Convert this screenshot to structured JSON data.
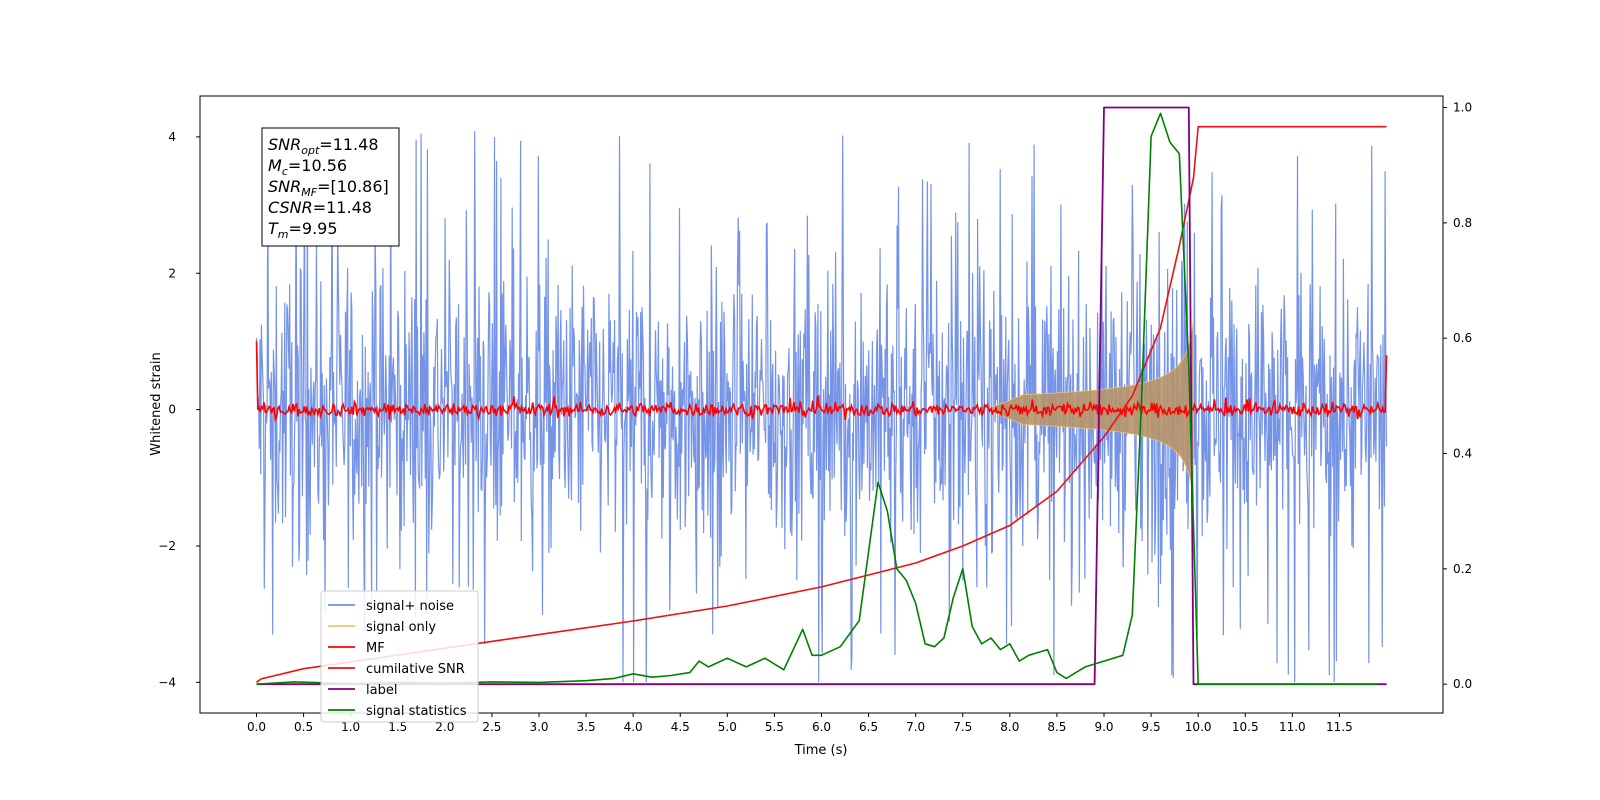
{
  "chart_data": {
    "type": "line",
    "xlabel": "Time (s)",
    "ylabel_left": "Whitened strain",
    "xlim": [
      -0.6,
      12.6
    ],
    "ylim_left": [
      -4.45,
      4.6
    ],
    "ylim_right": [
      -0.05,
      1.02
    ],
    "x_ticks": [
      0.0,
      0.5,
      1.0,
      1.5,
      2.0,
      2.5,
      3.0,
      3.5,
      4.0,
      4.5,
      5.0,
      5.5,
      6.0,
      6.5,
      7.0,
      7.5,
      8.0,
      8.5,
      9.0,
      9.5,
      10.0,
      10.5,
      11.0,
      11.5
    ],
    "x_tick_labels": [
      "0.0",
      "0.5",
      "1.0",
      "1.5",
      "2.0",
      "2.5",
      "3.0",
      "3.5",
      "4.0",
      "4.5",
      "5.0",
      "5.5",
      "6.0",
      "6.5",
      "7.0",
      "7.5",
      "8.0",
      "8.5",
      "9.0",
      "9.5",
      "10.0",
      "10.5",
      "11.0",
      "11.5"
    ],
    "y_ticks_left": [
      -4,
      -2,
      0,
      2,
      4
    ],
    "y_tick_labels_left": [
      "−4",
      "−2",
      "0",
      "2",
      "4"
    ],
    "y_ticks_right": [
      0.0,
      0.2,
      0.4,
      0.6,
      0.8,
      1.0
    ],
    "y_tick_labels_right": [
      "0.0",
      "0.2",
      "0.4",
      "0.6",
      "0.8",
      "1.0"
    ],
    "grid": false,
    "legend_position": "bottom-left",
    "colors": {
      "signal_noise": "#6f8ee6",
      "signal_only": "#f5c56b",
      "signal_only_fill": "#b8956a",
      "mf": "#ff0000",
      "cumulative_snr": "#ee1111",
      "label": "#800080",
      "signal_statistics": "#008000"
    },
    "series": [
      {
        "name": "signal+ noise",
        "axis": "left",
        "t_range": [
          0.0,
          12.0
        ],
        "amplitude_band": [
          -2.9,
          2.6
        ]
      },
      {
        "name": "signal only",
        "axis": "left",
        "t_range": [
          7.8,
          9.95
        ],
        "envelope_at_end": 0.95
      },
      {
        "name": "MF",
        "axis": "left",
        "t_range": [
          0.0,
          12.0
        ],
        "mean": 0.0,
        "band": [
          -0.15,
          0.2
        ],
        "start_value": 1.0,
        "end_value": 0.8
      },
      {
        "name": "cumilative SNR",
        "axis": "left",
        "x": [
          0.0,
          0.05,
          0.5,
          1.0,
          2.0,
          3.0,
          4.0,
          5.0,
          6.0,
          7.0,
          7.5,
          8.0,
          8.5,
          9.0,
          9.3,
          9.6,
          9.8,
          9.95,
          10.0,
          12.0
        ],
        "y": [
          -4.0,
          -3.95,
          -3.8,
          -3.7,
          -3.5,
          -3.3,
          -3.1,
          -2.88,
          -2.6,
          -2.25,
          -2.0,
          -1.7,
          -1.2,
          -0.4,
          0.2,
          1.2,
          2.4,
          3.4,
          4.15,
          4.15
        ]
      },
      {
        "name": "label",
        "axis": "right",
        "x": [
          0.0,
          8.9,
          9.0,
          9.9,
          9.95,
          12.0
        ],
        "y": [
          0.0,
          0.0,
          1.0,
          1.0,
          0.0,
          0.0
        ]
      },
      {
        "name": "signal statistics",
        "axis": "right",
        "x": [
          0.0,
          0.4,
          1.0,
          1.5,
          2.0,
          2.5,
          3.0,
          3.5,
          3.8,
          4.0,
          4.2,
          4.4,
          4.6,
          4.7,
          4.8,
          5.0,
          5.2,
          5.4,
          5.6,
          5.8,
          5.9,
          6.0,
          6.2,
          6.4,
          6.5,
          6.6,
          6.7,
          6.8,
          6.9,
          7.0,
          7.1,
          7.2,
          7.3,
          7.4,
          7.5,
          7.6,
          7.7,
          7.8,
          7.9,
          8.0,
          8.1,
          8.2,
          8.3,
          8.4,
          8.5,
          8.6,
          8.7,
          8.8,
          9.0,
          9.2,
          9.3,
          9.4,
          9.5,
          9.6,
          9.7,
          9.8,
          9.9,
          10.0,
          10.5,
          11.0,
          11.5,
          11.9
        ],
        "y": [
          0.0,
          0.004,
          0.001,
          0.003,
          0.002,
          0.004,
          0.003,
          0.006,
          0.01,
          0.018,
          0.012,
          0.015,
          0.02,
          0.04,
          0.03,
          0.045,
          0.03,
          0.045,
          0.025,
          0.095,
          0.05,
          0.05,
          0.065,
          0.11,
          0.23,
          0.35,
          0.3,
          0.2,
          0.18,
          0.14,
          0.07,
          0.065,
          0.08,
          0.15,
          0.2,
          0.1,
          0.07,
          0.08,
          0.06,
          0.07,
          0.04,
          0.05,
          0.055,
          0.06,
          0.02,
          0.01,
          0.02,
          0.03,
          0.04,
          0.05,
          0.12,
          0.5,
          0.95,
          0.99,
          0.94,
          0.92,
          0.55,
          0.0,
          0.0,
          0.0,
          0.0,
          0.0
        ]
      }
    ],
    "info_box": [
      {
        "main": "SNR",
        "sub": "opt",
        "rest": "=11.48"
      },
      {
        "main": "M",
        "sub": "c",
        "rest": "=10.56"
      },
      {
        "main": "SNR",
        "sub": "MF",
        "rest": "=[10.86]"
      },
      {
        "main": "CSNR",
        "sub": "",
        "rest": "=11.48"
      },
      {
        "main": "T",
        "sub": "m",
        "rest": "=9.95"
      }
    ],
    "legend": [
      "signal+ noise",
      "signal only",
      "MF",
      "cumilative SNR",
      "label",
      "signal statistics"
    ]
  }
}
